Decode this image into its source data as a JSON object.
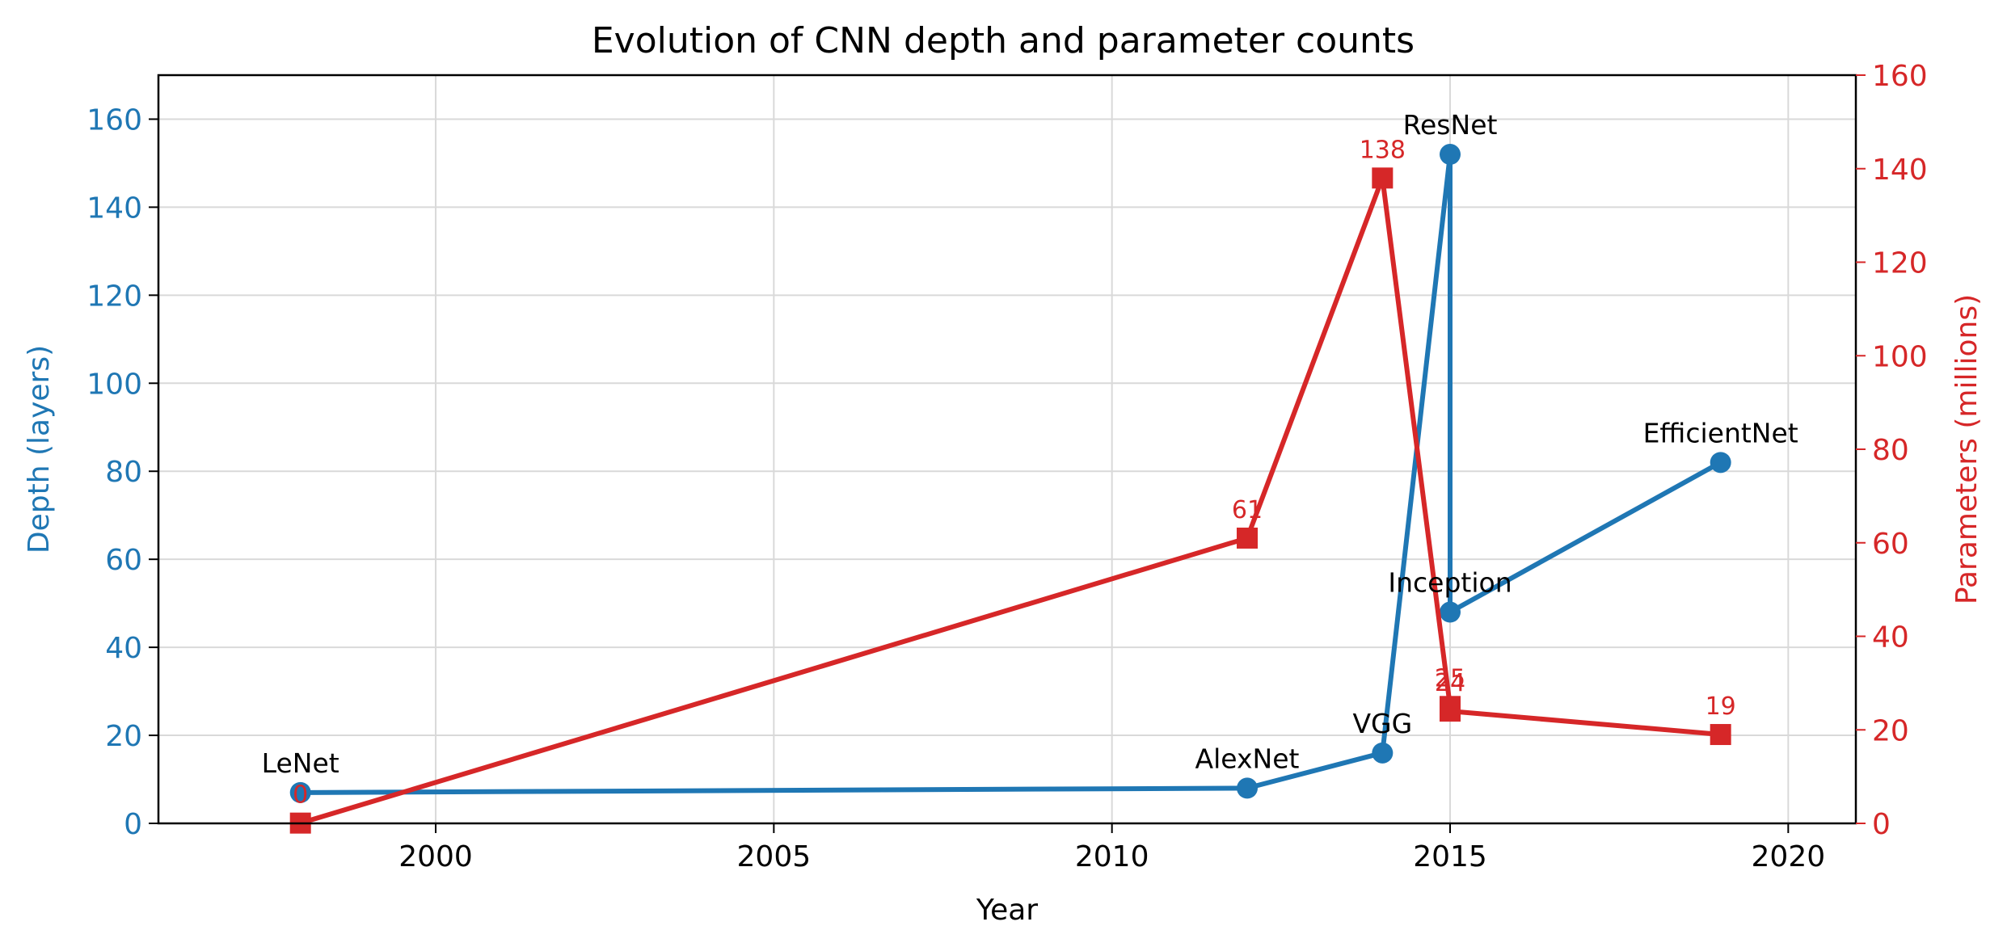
{
  "chart_data": {
    "type": "line",
    "title": "Evolution of CNN depth and parameter counts",
    "xlabel": "Year",
    "ylabel_left": "Depth (layers)",
    "ylabel_right": "Parameters (millions)",
    "xlim": [
      1995.9,
      2021.0
    ],
    "ylim_left": [
      0,
      170
    ],
    "ylim_right": [
      0,
      160
    ],
    "x_ticks": [
      2000,
      2005,
      2010,
      2015,
      2020
    ],
    "y_ticks_left": [
      0,
      20,
      40,
      60,
      80,
      100,
      120,
      140,
      160
    ],
    "y_ticks_right": [
      0,
      20,
      40,
      60,
      80,
      100,
      120,
      140,
      160
    ],
    "grid": true,
    "colors": {
      "depth": "#1f77b4",
      "params": "#d62728"
    },
    "models": [
      "LeNet",
      "AlexNet",
      "VGG",
      "ResNet",
      "Inception",
      "EfficientNet"
    ],
    "param_labels": [
      "0",
      "61",
      "138",
      "25",
      "24",
      "19"
    ],
    "series": [
      {
        "axis": "left",
        "marker": "circle",
        "x": [
          1998,
          2012,
          2014,
          2015,
          2015,
          2019
        ],
        "values": [
          7,
          8,
          16,
          152,
          48,
          82
        ]
      },
      {
        "axis": "right",
        "marker": "square",
        "x": [
          1998,
          2012,
          2014,
          2015,
          2015,
          2019
        ],
        "values": [
          0.06,
          61,
          138,
          25,
          24,
          19
        ]
      }
    ]
  }
}
